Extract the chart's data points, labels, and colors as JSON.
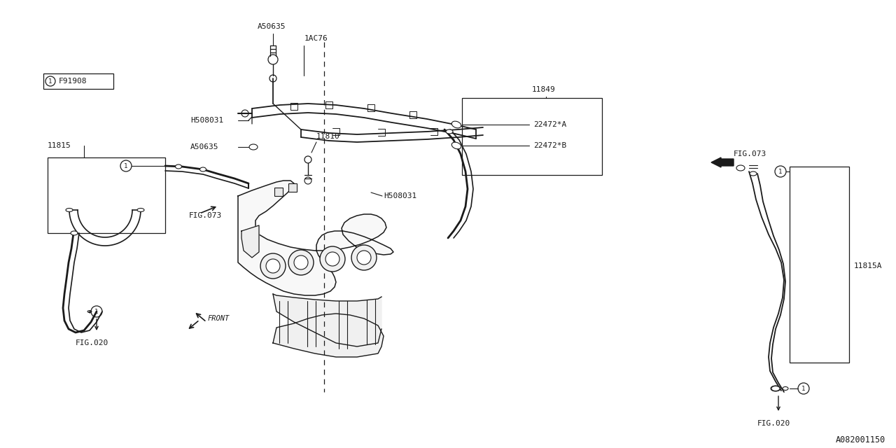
{
  "bg_color": "#ffffff",
  "lc": "#1a1a1a",
  "fig_width": 12.8,
  "fig_height": 6.4,
  "dpi": 100,
  "labels": {
    "A50635_top": "A50635",
    "IAC76": "1AC76",
    "H508031_left": "H508031",
    "A50635_left": "A50635",
    "11810": "11810",
    "11849": "11849",
    "22472A": "22472*A",
    "22472B": "22472*B",
    "11815": "11815",
    "FIG073_left": "FIG.073",
    "FIG020_left": "FIG.020",
    "H508031_right": "H508031",
    "FIG073_right": "FIG.073",
    "11815A": "11815A",
    "FIG020_right": "FIG.020",
    "A082001150": "A082001150",
    "F91908": "F91908",
    "FRONT": "FRONT"
  },
  "font_mono": "monospace",
  "fs": 8.0,
  "fs_sm": 7.0,
  "fs_code": 8.0
}
